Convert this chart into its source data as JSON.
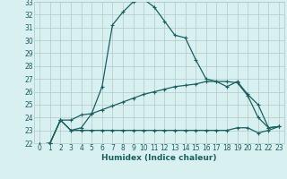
{
  "title": "",
  "xlabel": "Humidex (Indice chaleur)",
  "xlim": [
    -0.5,
    23.5
  ],
  "ylim": [
    22,
    33
  ],
  "yticks": [
    22,
    23,
    24,
    25,
    26,
    27,
    28,
    29,
    30,
    31,
    32,
    33
  ],
  "xticks": [
    0,
    1,
    2,
    3,
    4,
    5,
    6,
    7,
    8,
    9,
    10,
    11,
    12,
    13,
    14,
    15,
    16,
    17,
    18,
    19,
    20,
    21,
    22,
    23
  ],
  "bg_color": "#d8f0f0",
  "plot_bg_color": "#d8f0f0",
  "line_color": "#1a6060",
  "grid_color": "#b0c8c8",
  "line1_x": [
    0,
    1,
    2,
    3,
    4,
    5,
    6,
    7,
    8,
    9,
    10,
    11,
    12,
    13,
    14,
    15,
    16,
    17,
    18,
    19,
    20,
    21,
    22,
    23
  ],
  "line1_y": [
    21.9,
    22.0,
    23.8,
    23.0,
    23.2,
    24.3,
    26.4,
    31.2,
    32.2,
    33.0,
    33.2,
    32.6,
    31.5,
    30.4,
    30.2,
    28.5,
    27.0,
    26.8,
    26.4,
    26.8,
    25.8,
    25.0,
    23.2,
    23.3
  ],
  "line2_x": [
    0,
    1,
    2,
    3,
    4,
    5,
    6,
    7,
    8,
    9,
    10,
    11,
    12,
    13,
    14,
    15,
    16,
    17,
    18,
    19,
    20,
    21,
    22,
    23
  ],
  "line2_y": [
    21.9,
    22.0,
    23.8,
    23.8,
    24.2,
    24.3,
    24.6,
    24.9,
    25.2,
    25.5,
    25.8,
    26.0,
    26.2,
    26.4,
    26.5,
    26.6,
    26.8,
    26.8,
    26.8,
    26.7,
    25.7,
    24.0,
    23.2,
    23.3
  ],
  "line3_x": [
    0,
    1,
    2,
    3,
    4,
    5,
    6,
    7,
    8,
    9,
    10,
    11,
    12,
    13,
    14,
    15,
    16,
    17,
    18,
    19,
    20,
    21,
    22,
    23
  ],
  "line3_y": [
    21.9,
    22.0,
    23.8,
    23.0,
    23.0,
    23.0,
    23.0,
    23.0,
    23.0,
    23.0,
    23.0,
    23.0,
    23.0,
    23.0,
    23.0,
    23.0,
    23.0,
    23.0,
    23.0,
    23.2,
    23.2,
    22.8,
    23.0,
    23.3
  ],
  "tick_fontsize": 5.5,
  "xlabel_fontsize": 6.5,
  "lw": 0.9,
  "marker_size": 2.5,
  "marker_ew": 0.8
}
